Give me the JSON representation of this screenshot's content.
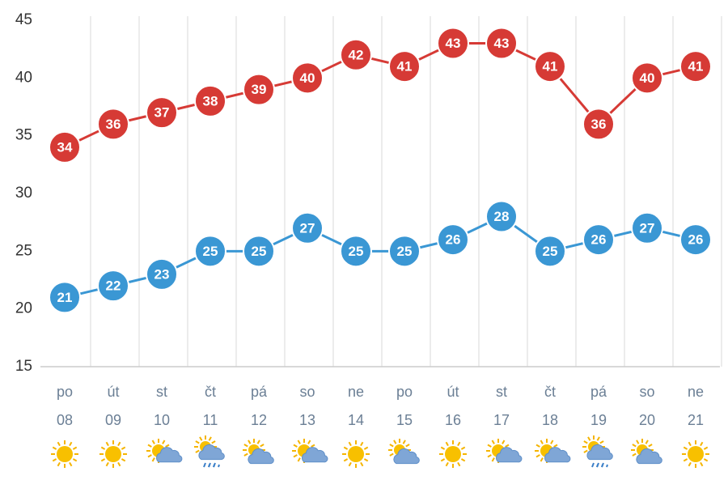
{
  "chart_data": {
    "type": "line",
    "categories": [
      "po",
      "út",
      "st",
      "čt",
      "pá",
      "so",
      "ne",
      "po",
      "út",
      "st",
      "čt",
      "pá",
      "so",
      "ne"
    ],
    "dates": [
      "08",
      "09",
      "10",
      "11",
      "12",
      "13",
      "14",
      "15",
      "16",
      "17",
      "18",
      "19",
      "20",
      "21"
    ],
    "series": [
      {
        "color": "#d63a35",
        "values": [
          34,
          36,
          37,
          38,
          39,
          40,
          42,
          41,
          43,
          43,
          41,
          36,
          40,
          41
        ]
      },
      {
        "color": "#3a97d4",
        "values": [
          21,
          22,
          23,
          25,
          25,
          27,
          25,
          25,
          26,
          28,
          25,
          26,
          27,
          26
        ]
      }
    ],
    "ylim": [
      15,
      45
    ],
    "yticks": [
      15,
      20,
      25,
      30,
      35,
      40,
      45
    ],
    "grid": true
  }
}
